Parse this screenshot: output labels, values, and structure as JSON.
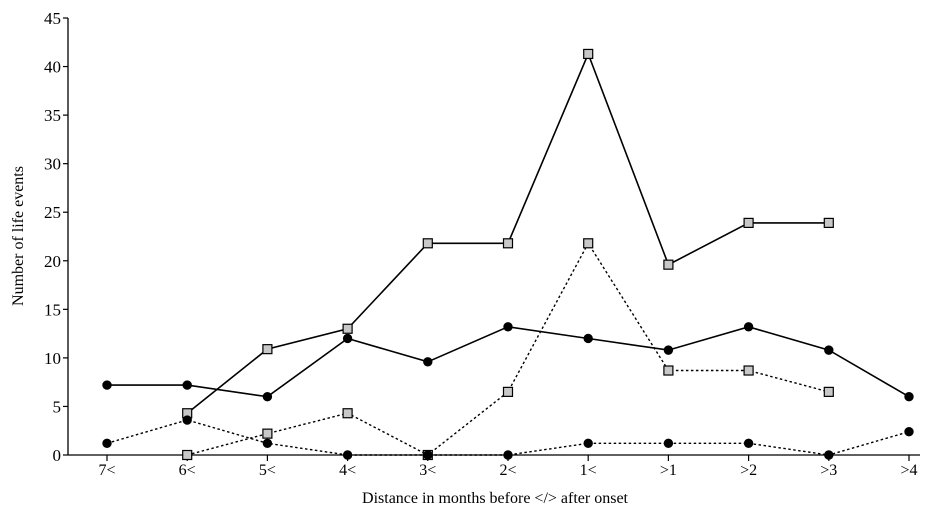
{
  "chart_data": {
    "type": "line",
    "title": "",
    "xlabel": "Distance in months before </> after onset",
    "ylabel": "Number of life events",
    "categories": [
      "7<",
      "6<",
      "5<",
      "4<",
      "3<",
      "2<",
      "1<",
      ">1",
      ">2",
      ">3",
      ">4"
    ],
    "yticks": [
      "0",
      "5",
      "10",
      "15",
      "20",
      "25",
      "30",
      "35",
      "40",
      "45"
    ],
    "ylim": [
      0,
      45
    ],
    "grid": false,
    "legend": "none",
    "series": [
      {
        "style": "solid",
        "marker": "square",
        "color": "#000000",
        "marker_fill": "#c8c8c8",
        "values": [
          null,
          4.3,
          10.9,
          13.0,
          21.8,
          21.8,
          41.3,
          19.6,
          23.9,
          23.9,
          null
        ]
      },
      {
        "style": "solid",
        "marker": "circle",
        "color": "#000000",
        "marker_fill": "#000000",
        "values": [
          7.2,
          7.2,
          6.0,
          12.0,
          9.6,
          13.2,
          12.0,
          10.8,
          13.2,
          10.8,
          6.0
        ]
      },
      {
        "style": "dotted",
        "marker": "square",
        "color": "#000000",
        "marker_fill": "#c8c8c8",
        "values": [
          null,
          0,
          2.2,
          4.3,
          0,
          6.5,
          21.8,
          8.7,
          8.7,
          6.5,
          null
        ]
      },
      {
        "style": "dotted",
        "marker": "circle",
        "color": "#000000",
        "marker_fill": "#000000",
        "values": [
          1.2,
          3.6,
          1.2,
          0,
          0,
          0,
          1.2,
          1.2,
          1.2,
          0,
          2.4
        ]
      }
    ]
  }
}
